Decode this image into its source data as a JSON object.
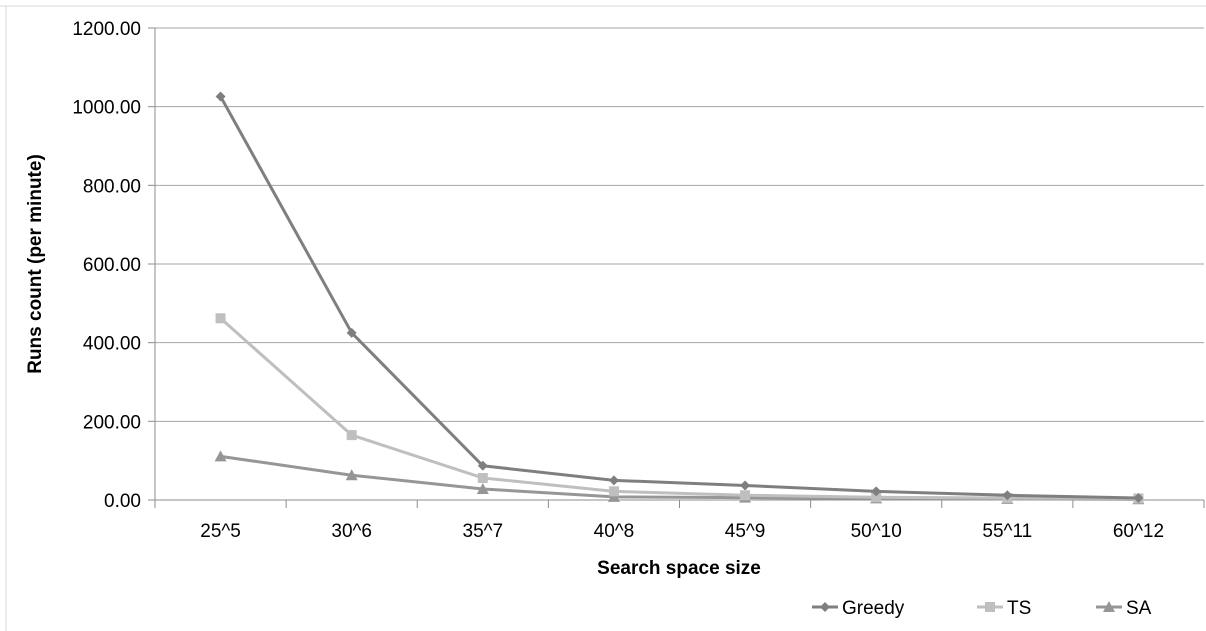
{
  "chart_data": {
    "type": "line",
    "title": "",
    "xlabel": "Search space size",
    "ylabel": "Runs count (per minute)",
    "categories": [
      "25^5",
      "30^6",
      "35^7",
      "40^8",
      "45^9",
      "50^10",
      "55^11",
      "60^12"
    ],
    "ylim": [
      0,
      1200
    ],
    "yticks": [
      "0.00",
      "200.00",
      "400.00",
      "600.00",
      "800.00",
      "1000.00",
      "1200.00"
    ],
    "grid": "horizontal",
    "legend_position": "bottom-right",
    "series": [
      {
        "name": "Greedy",
        "marker": "diamond",
        "color": "#7f7f7f",
        "values": [
          1026,
          425,
          87,
          50,
          37,
          22,
          12,
          5
        ]
      },
      {
        "name": "TS",
        "marker": "square",
        "color": "#bfbfbf",
        "values": [
          462,
          165,
          56,
          22,
          12,
          7,
          5,
          4
        ]
      },
      {
        "name": "SA",
        "marker": "triangle",
        "color": "#969696",
        "values": [
          111,
          63,
          28,
          8,
          6,
          4,
          3,
          2
        ]
      }
    ]
  }
}
